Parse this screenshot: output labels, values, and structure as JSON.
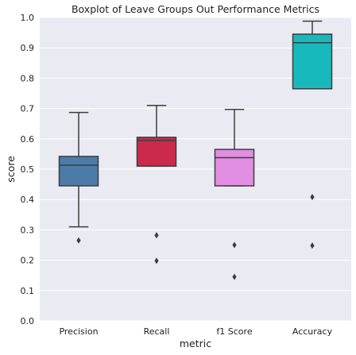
{
  "chart_data": {
    "type": "boxplot",
    "title": "Boxplot of Leave Groups Out Performance Metrics",
    "xlabel": "metric",
    "ylabel": "score",
    "ylim": [
      0.0,
      1.0
    ],
    "yticks": [
      "0.0",
      "0.1",
      "0.2",
      "0.3",
      "0.4",
      "0.5",
      "0.6",
      "0.7",
      "0.8",
      "0.9",
      "1.0"
    ],
    "grid": true,
    "categories": [
      "Precision",
      "Recall",
      "f1 Score",
      "Accuracy"
    ],
    "boxes": [
      {
        "category": "Precision",
        "whislo": 0.31,
        "q1": 0.445,
        "med": 0.513,
        "q3": 0.542,
        "whishi": 0.687,
        "fliers": [
          0.265
        ],
        "color": "#4c7ba8"
      },
      {
        "category": "Recall",
        "whislo": 0.51,
        "q1": 0.51,
        "med": 0.595,
        "q3": 0.605,
        "whishi": 0.71,
        "fliers": [
          0.282,
          0.198
        ],
        "color": "#cc2a4c"
      },
      {
        "category": "f1 Score",
        "whislo": 0.445,
        "q1": 0.445,
        "med": 0.538,
        "q3": 0.565,
        "whishi": 0.697,
        "fliers": [
          0.25,
          0.145
        ],
        "color": "#e28ee2"
      },
      {
        "category": "Accuracy",
        "whislo": 0.765,
        "q1": 0.765,
        "med": 0.917,
        "q3": 0.945,
        "whishi": 0.988,
        "fliers": [
          0.408,
          0.248
        ],
        "color": "#17b9bd"
      }
    ],
    "colors": {
      "background": "#eaeaf2",
      "grid": "#ffffff",
      "line": "#3d3d3d"
    }
  }
}
